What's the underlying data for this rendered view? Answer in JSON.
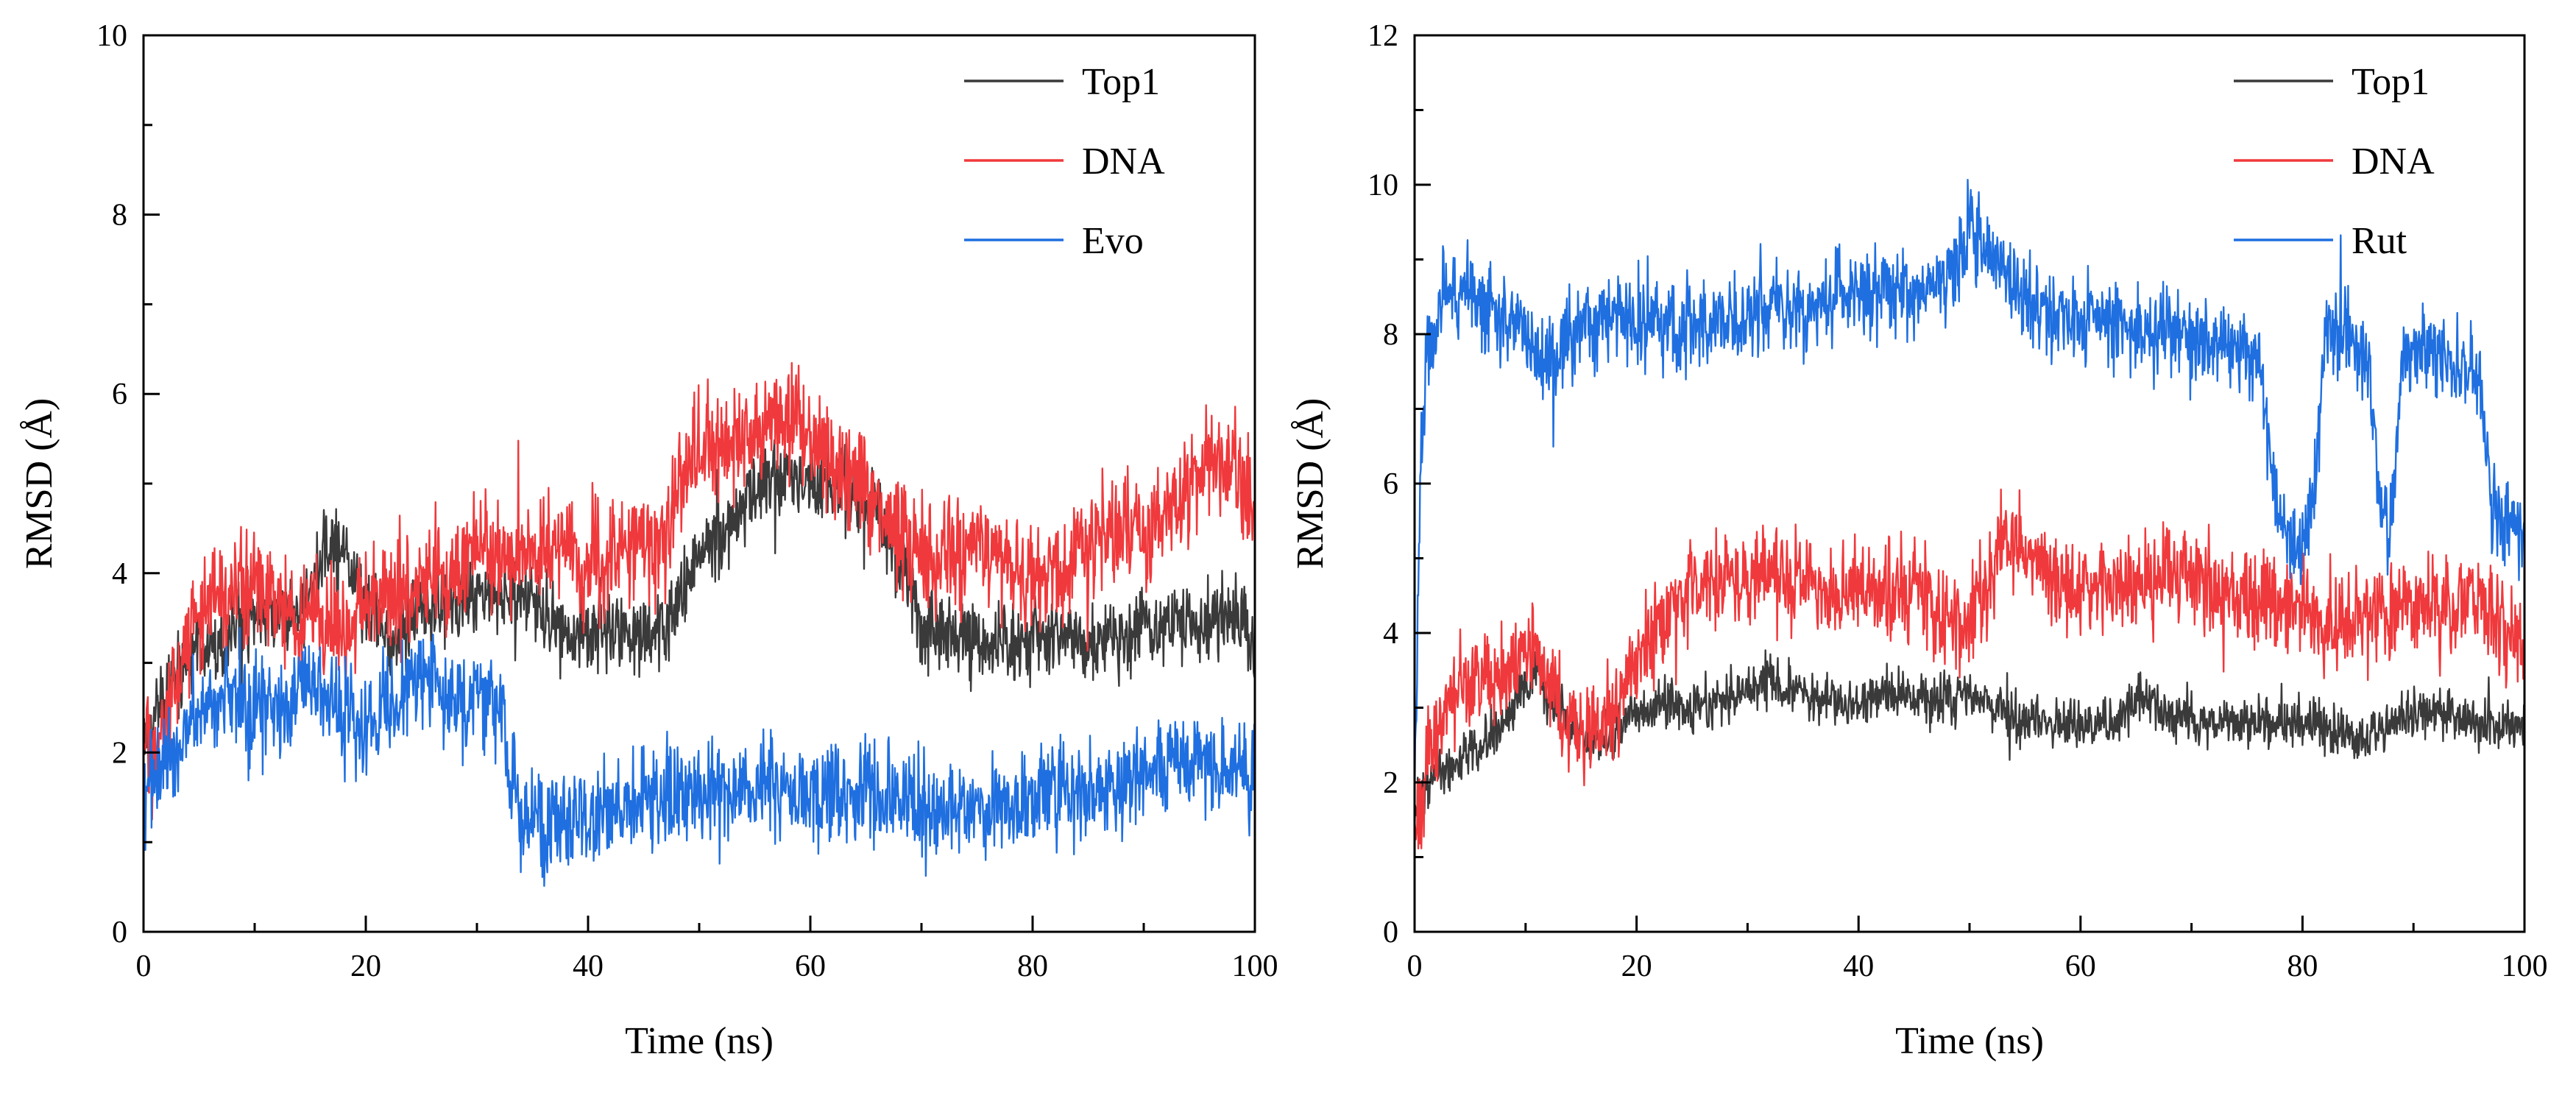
{
  "chart_data": [
    {
      "type": "line",
      "xlabel": "Time (ns)",
      "ylabel": "RMSD (Å)",
      "xlim": [
        0,
        100
      ],
      "ylim": [
        0,
        10
      ],
      "xticks": [
        "0",
        "20",
        "40",
        "60",
        "80",
        "100"
      ],
      "yticks": [
        "0",
        "2",
        "4",
        "6",
        "8",
        "10"
      ],
      "legend_position": "top-right",
      "series": [
        {
          "name": "Top1",
          "color": "#3a3a3a",
          "noise": 0.22,
          "x": [
            0,
            1,
            2,
            3,
            4,
            5,
            8,
            10,
            13,
            15,
            16,
            17,
            18,
            20,
            22,
            25,
            28,
            30,
            33,
            35,
            38,
            40,
            42,
            45,
            48,
            50,
            53,
            55,
            58,
            60,
            63,
            66,
            68,
            70,
            73,
            75,
            78,
            80,
            83,
            85,
            88,
            90,
            93,
            95,
            98,
            100
          ],
          "y": [
            1.9,
            2.4,
            2.7,
            2.9,
            3.0,
            3.1,
            3.3,
            3.6,
            3.5,
            3.6,
            4.2,
            4.4,
            4.3,
            3.6,
            3.3,
            3.6,
            3.6,
            3.8,
            3.8,
            3.7,
            3.3,
            3.3,
            3.4,
            3.2,
            3.6,
            4.2,
            4.6,
            5.0,
            5.2,
            5.0,
            4.9,
            4.8,
            4.1,
            3.5,
            3.3,
            3.2,
            3.2,
            3.3,
            3.3,
            3.2,
            3.3,
            3.4,
            3.5,
            3.4,
            3.5,
            3.2
          ]
        },
        {
          "name": "DNA",
          "color": "#f0393c",
          "noise": 0.3,
          "x": [
            0,
            1,
            2,
            3,
            4,
            5,
            8,
            10,
            13,
            15,
            17,
            20,
            22,
            25,
            28,
            30,
            33,
            35,
            38,
            40,
            42,
            45,
            47,
            48,
            50,
            53,
            55,
            58,
            60,
            62,
            65,
            68,
            70,
            73,
            75,
            78,
            80,
            83,
            85,
            88,
            90,
            93,
            95,
            98,
            100
          ],
          "y": [
            2.1,
            2.0,
            2.3,
            2.9,
            3.3,
            3.6,
            3.8,
            3.9,
            3.6,
            3.5,
            3.4,
            3.7,
            3.8,
            3.9,
            4.1,
            4.3,
            4.2,
            4.2,
            4.3,
            4.0,
            4.1,
            4.5,
            4.1,
            4.9,
            5.5,
            5.4,
            5.6,
            5.7,
            5.6,
            5.2,
            5.0,
            4.4,
            4.1,
            4.2,
            4.4,
            4.0,
            3.9,
            4.0,
            4.4,
            4.5,
            4.4,
            4.8,
            5.2,
            5.2,
            4.6
          ]
        },
        {
          "name": "Evo",
          "color": "#1f6fe0",
          "noise": 0.28,
          "x": [
            0,
            1,
            2,
            3,
            4,
            5,
            8,
            10,
            13,
            15,
            17,
            20,
            23,
            25,
            28,
            30,
            32,
            33,
            34,
            35,
            38,
            40,
            45,
            50,
            55,
            60,
            65,
            70,
            75,
            80,
            85,
            90,
            95,
            100
          ],
          "y": [
            1.3,
            1.8,
            1.9,
            2.0,
            2.3,
            2.5,
            2.6,
            2.6,
            2.5,
            2.9,
            2.5,
            2.3,
            2.6,
            2.9,
            2.5,
            2.7,
            2.5,
            1.8,
            1.2,
            1.2,
            1.2,
            1.3,
            1.4,
            1.6,
            1.6,
            1.5,
            1.6,
            1.4,
            1.3,
            1.5,
            1.6,
            1.7,
            1.9,
            1.8
          ]
        }
      ]
    },
    {
      "type": "line",
      "xlabel": "Time (ns)",
      "ylabel": "RMSD (Å)",
      "xlim": [
        0,
        100
      ],
      "ylim": [
        0,
        12
      ],
      "xticks": [
        "0",
        "20",
        "40",
        "60",
        "80",
        "100"
      ],
      "yticks": [
        "0",
        "2",
        "4",
        "6",
        "8",
        "10",
        "12"
      ],
      "legend_position": "top-right",
      "series": [
        {
          "name": "Top1",
          "color": "#3a3a3a",
          "noise": 0.16,
          "x": [
            0,
            1,
            2,
            4,
            6,
            8,
            10,
            11,
            12,
            14,
            16,
            18,
            20,
            23,
            25,
            28,
            30,
            32,
            35,
            38,
            40,
            43,
            45,
            48,
            50,
            53,
            55,
            58,
            60,
            63,
            65,
            68,
            70,
            73,
            75,
            78,
            80,
            83,
            85,
            88,
            90,
            93,
            95,
            98,
            100
          ],
          "y": [
            1.6,
            1.9,
            2.1,
            2.3,
            2.5,
            2.8,
            3.3,
            3.6,
            3.2,
            2.7,
            2.5,
            2.7,
            2.9,
            3.1,
            3.0,
            3.1,
            3.2,
            3.4,
            3.2,
            3.0,
            3.1,
            3.2,
            3.1,
            3.1,
            3.2,
            2.9,
            2.8,
            2.8,
            2.8,
            2.8,
            3.1,
            2.9,
            2.8,
            2.8,
            2.8,
            2.8,
            2.8,
            2.7,
            2.6,
            2.8,
            2.9,
            2.9,
            2.8,
            2.8,
            2.8
          ]
        },
        {
          "name": "DNA",
          "color": "#f0393c",
          "noise": 0.32,
          "x": [
            0,
            1,
            2,
            4,
            6,
            8,
            10,
            11,
            12,
            13,
            14,
            15,
            16,
            18,
            20,
            22,
            24,
            25,
            27,
            30,
            32,
            35,
            38,
            40,
            43,
            45,
            48,
            50,
            52,
            53,
            55,
            58,
            60,
            63,
            65,
            68,
            70,
            73,
            75,
            78,
            80,
            83,
            85,
            88,
            90,
            93,
            95,
            98,
            100
          ],
          "y": [
            1.2,
            2.2,
            2.6,
            3.3,
            3.3,
            3.4,
            3.8,
            3.9,
            3.3,
            3.0,
            2.7,
            2.6,
            2.6,
            3.0,
            3.6,
            4.2,
            4.5,
            4.6,
            4.7,
            4.8,
            4.8,
            4.6,
            4.4,
            4.6,
            4.6,
            4.6,
            4.1,
            4.1,
            4.8,
            5.2,
            5.0,
            4.8,
            4.6,
            4.7,
            4.5,
            4.9,
            4.8,
            4.5,
            4.6,
            4.3,
            4.3,
            4.1,
            4.2,
            4.3,
            4.4,
            4.3,
            4.5,
            4.0,
            3.8
          ]
        },
        {
          "name": "Rut",
          "color": "#1f6fe0",
          "noise": 0.3,
          "x": [
            0,
            0.5,
            1,
            2,
            3,
            4,
            5,
            6,
            7,
            8,
            9,
            10,
            12,
            15,
            18,
            20,
            23,
            25,
            28,
            30,
            33,
            35,
            38,
            40,
            43,
            45,
            48,
            50,
            51,
            53,
            55,
            58,
            60,
            63,
            65,
            68,
            70,
            73,
            75,
            76,
            77,
            78,
            79,
            80,
            81,
            82,
            83,
            85,
            86,
            87,
            88,
            89,
            90,
            93,
            95,
            96,
            97,
            98,
            99,
            100
          ],
          "y": [
            2.0,
            6.0,
            7.8,
            8.2,
            8.8,
            8.4,
            8.6,
            8.4,
            8.3,
            8.2,
            8.1,
            7.9,
            7.6,
            8.1,
            8.3,
            8.2,
            8.0,
            8.1,
            8.1,
            8.2,
            8.4,
            8.3,
            8.5,
            8.5,
            8.6,
            8.6,
            8.7,
            9.3,
            9.3,
            8.9,
            8.4,
            8.3,
            8.2,
            8.2,
            8.0,
            8.0,
            7.9,
            7.8,
            7.7,
            7.6,
            6.4,
            5.4,
            5.2,
            5.0,
            5.9,
            7.9,
            8.0,
            7.9,
            7.5,
            5.7,
            5.4,
            7.6,
            7.7,
            7.7,
            7.5,
            7.5,
            5.7,
            5.4,
            5.5,
            5.3
          ]
        }
      ]
    }
  ]
}
